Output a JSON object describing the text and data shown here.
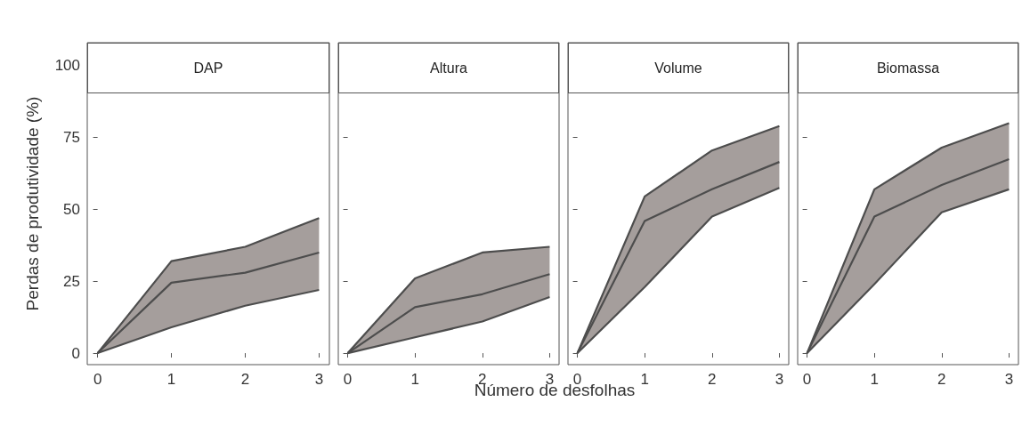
{
  "chart_data": [
    {
      "type": "line",
      "title": "DAP",
      "ylabel": "Perdas de produtividade (%)",
      "x": [
        0,
        1,
        2,
        3
      ],
      "xlim": [
        -0.14,
        3.14
      ],
      "xticks": [
        0,
        1,
        2,
        3
      ],
      "ylim": [
        -4,
        108
      ],
      "yticks": [
        0,
        25,
        50,
        75,
        100
      ],
      "grid": false,
      "marker": "none",
      "series": [
        {
          "color": "#4d4d4d",
          "values": [
            0,
            32,
            37,
            47
          ]
        },
        {
          "color": "#4d4d4d",
          "values": [
            0,
            24.5,
            28,
            35
          ],
          "lower": [
            0,
            9,
            16.5,
            22
          ],
          "upper": [
            0,
            32,
            37,
            47
          ]
        },
        {
          "color": "#4d4d4d",
          "values": [
            0,
            9,
            16.5,
            22
          ]
        }
      ]
    },
    {
      "type": "line",
      "title": "Altura",
      "xlabel": "Número de desfolhas",
      "x": [
        0,
        1,
        2,
        3
      ],
      "xlim": [
        -0.14,
        3.14
      ],
      "xticks": [
        0,
        1,
        2,
        3
      ],
      "ylim": [
        -4,
        108
      ],
      "yticks": [
        0,
        25,
        50,
        75,
        100
      ],
      "tick_labels": "x",
      "grid": false,
      "marker": "none",
      "series": [
        {
          "color": "#4d4d4d",
          "values": [
            0,
            26,
            35,
            37
          ]
        },
        {
          "color": "#4d4d4d",
          "values": [
            0,
            16,
            20.5,
            27.5
          ],
          "lower": [
            0,
            5.5,
            11,
            19.5
          ],
          "upper": [
            0,
            26,
            35,
            37
          ]
        },
        {
          "color": "#4d4d4d",
          "values": [
            0,
            5.5,
            11,
            19.5
          ]
        }
      ]
    },
    {
      "type": "line",
      "title": "Volume",
      "x": [
        0,
        1,
        2,
        3
      ],
      "xlim": [
        -0.14,
        3.14
      ],
      "xticks": [
        0,
        1,
        2,
        3
      ],
      "ylim": [
        -4,
        108
      ],
      "yticks": [
        0,
        25,
        50,
        75,
        100
      ],
      "tick_labels": "x",
      "grid": false,
      "marker": "none",
      "series": [
        {
          "color": "#4d4d4d",
          "values": [
            0,
            54.5,
            70.5,
            79
          ]
        },
        {
          "color": "#4d4d4d",
          "values": [
            0,
            46,
            57,
            66.5
          ],
          "lower": [
            0,
            23,
            47.5,
            57.5
          ],
          "upper": [
            0,
            54.5,
            70.5,
            79
          ]
        },
        {
          "color": "#4d4d4d",
          "values": [
            0,
            23,
            47.5,
            57.5
          ]
        }
      ]
    },
    {
      "type": "line",
      "title": "Biomassa",
      "x": [
        0,
        1,
        2,
        3
      ],
      "xlim": [
        -0.14,
        3.14
      ],
      "xticks": [
        0,
        1,
        2,
        3
      ],
      "ylim": [
        -4,
        108
      ],
      "yticks": [
        0,
        25,
        50,
        75,
        100
      ],
      "tick_labels": "x",
      "grid": false,
      "marker": "none",
      "series": [
        {
          "color": "#4d4d4d",
          "values": [
            0,
            57,
            71.5,
            80
          ]
        },
        {
          "color": "#4d4d4d",
          "values": [
            0,
            47.5,
            58.5,
            67.5
          ],
          "lower": [
            0,
            24,
            49,
            57
          ],
          "upper": [
            0,
            57,
            71.5,
            80
          ]
        },
        {
          "color": "#4d4d4d",
          "values": [
            0,
            24,
            49,
            57
          ]
        }
      ]
    }
  ]
}
